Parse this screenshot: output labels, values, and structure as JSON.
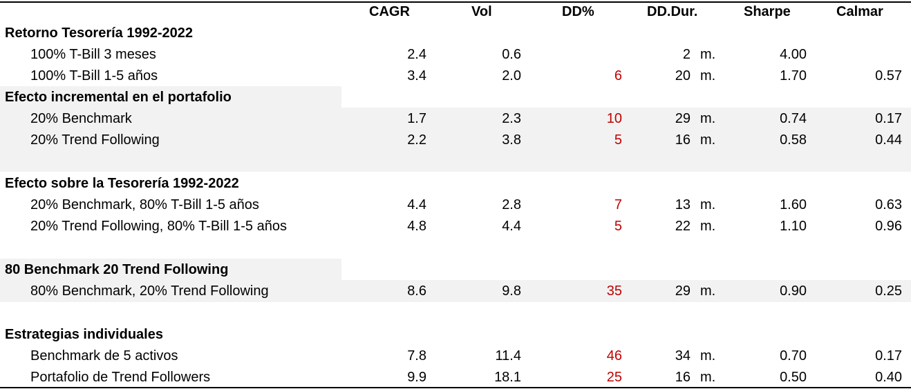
{
  "headers": {
    "cagr": "CAGR",
    "vol": "Vol",
    "dd": "DD%",
    "dddur": "DD.Dur.",
    "sharpe": "Sharpe",
    "calmar": "Calmar"
  },
  "sections": {
    "s1": "Retorno Tesorería 1992-2022",
    "s2": "Efecto incremental en el portafolio",
    "s3": "Efecto sobre la Tesorería 1992-2022",
    "s4": "80 Benchmark 20 Trend Following",
    "s5": "Estrategias individuales"
  },
  "rows": {
    "r1": {
      "label": "100% T-Bill 3 meses",
      "cagr": "2.4",
      "vol": "0.6",
      "dd": "",
      "dddur": "2",
      "unit": "m.",
      "sharpe": "4.00",
      "calmar": ""
    },
    "r2": {
      "label": "100% T-Bill 1-5 años",
      "cagr": "3.4",
      "vol": "2.0",
      "dd": "6",
      "dddur": "20",
      "unit": "m.",
      "sharpe": "1.70",
      "calmar": "0.57"
    },
    "r3": {
      "label": "20% Benchmark",
      "cagr": "1.7",
      "vol": "2.3",
      "dd": "10",
      "dddur": "29",
      "unit": "m.",
      "sharpe": "0.74",
      "calmar": "0.17"
    },
    "r4": {
      "label": "20% Trend Following",
      "cagr": "2.2",
      "vol": "3.8",
      "dd": "5",
      "dddur": "16",
      "unit": "m.",
      "sharpe": "0.58",
      "calmar": "0.44"
    },
    "r5": {
      "label": "20% Benchmark, 80% T-Bill 1-5 años",
      "cagr": "4.4",
      "vol": "2.8",
      "dd": "7",
      "dddur": "13",
      "unit": "m.",
      "sharpe": "1.60",
      "calmar": "0.63"
    },
    "r6": {
      "label": "20% Trend Following, 80% T-Bill 1-5 años",
      "cagr": "4.8",
      "vol": "4.4",
      "dd": "5",
      "dddur": "22",
      "unit": "m.",
      "sharpe": "1.10",
      "calmar": "0.96"
    },
    "r7": {
      "label": "80% Benchmark, 20% Trend Following",
      "cagr": "8.6",
      "vol": "9.8",
      "dd": "35",
      "dddur": "29",
      "unit": "m.",
      "sharpe": "0.90",
      "calmar": "0.25"
    },
    "r8": {
      "label": "Benchmark de 5 activos",
      "cagr": "7.8",
      "vol": "11.4",
      "dd": "46",
      "dddur": "34",
      "unit": "m.",
      "sharpe": "0.70",
      "calmar": "0.17"
    },
    "r9": {
      "label": "Portafolio de Trend Followers",
      "cagr": "9.9",
      "vol": "18.1",
      "dd": "25",
      "dddur": "16",
      "unit": "m.",
      "sharpe": "0.50",
      "calmar": "0.40"
    }
  },
  "colors": {
    "drawdown": "#c00000",
    "shade": "#f2f2f2"
  }
}
